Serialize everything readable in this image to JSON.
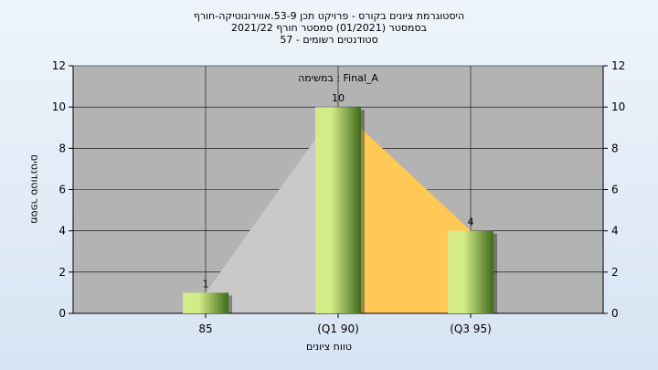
{
  "titles": [
    "היסטוגרמת ציונים בקורס - פרויקט תכן 53-9.אווירונוטיקה-חורף",
    "בסמסטר  (01/2021)  סמסטר חורף 2021/22",
    "סטודנטים רשומים - 57"
  ],
  "chart_data": {
    "type": "bar",
    "title": "היסטוגרמת ציונים בקורס - פרויקט תכן 53-9.אווירונוטיקה-חורף",
    "inner_label": "במשימה : Final_A",
    "categories": [
      "85",
      "(Q1 90)",
      "(Q3 95)"
    ],
    "values": [
      1,
      10,
      4
    ],
    "data_labels": [
      "1",
      "10",
      "4"
    ],
    "ylim": [
      0,
      12
    ],
    "yticks": [
      "0",
      "2",
      "4",
      "6",
      "8",
      "10",
      "12"
    ],
    "ylabel": "מספר סטודנטים",
    "xlabel": "טווח ציונים",
    "grid": true,
    "secondary_y_axis": true,
    "colors": {
      "plot_bg": "#b3b3b3",
      "bar_light": "#d4ec86",
      "bar_dark": "#3f6a1c",
      "area_before_peak": "#c8c8c8",
      "area_after_peak": "#ffc957"
    }
  }
}
